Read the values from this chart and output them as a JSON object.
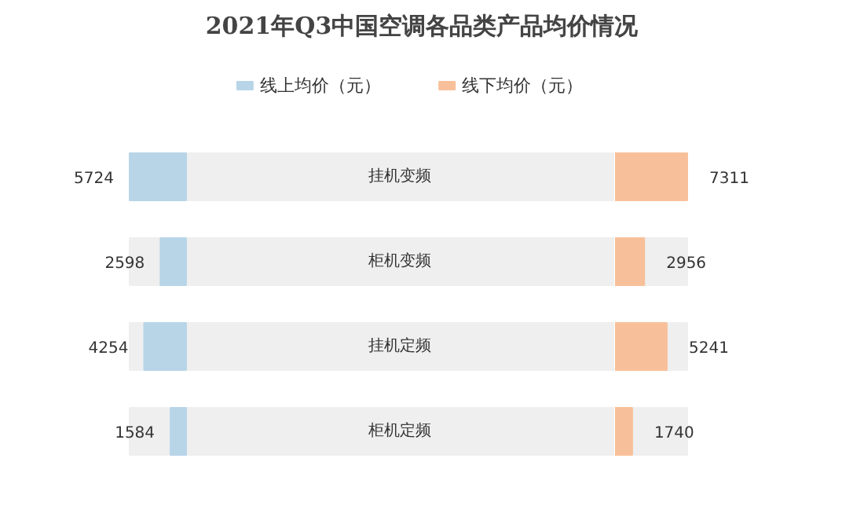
{
  "chart_data": [
    {
      "type": "bar",
      "orientation": "horizontal",
      "title": "2021年Q3中国空调各品类产品均价情况",
      "categories": [
        "挂机变频",
        "柜机变频",
        "挂机定频",
        "柜机定频"
      ],
      "series": [
        {
          "name": "线上均价（元）",
          "color": "#b8d5e8",
          "values": [
            5724,
            2598,
            4254,
            1584
          ]
        }
      ],
      "data_labels": true,
      "legend": "top"
    },
    {
      "type": "bar",
      "orientation": "horizontal",
      "categories": [
        null,
        null,
        null,
        null
      ],
      "series": [
        {
          "name": "线下均价（元）",
          "color": "#f8c09a",
          "values": [
            7311,
            2956,
            5241,
            1740
          ]
        }
      ],
      "data_labels": true,
      "legend": "top"
    }
  ]
}
